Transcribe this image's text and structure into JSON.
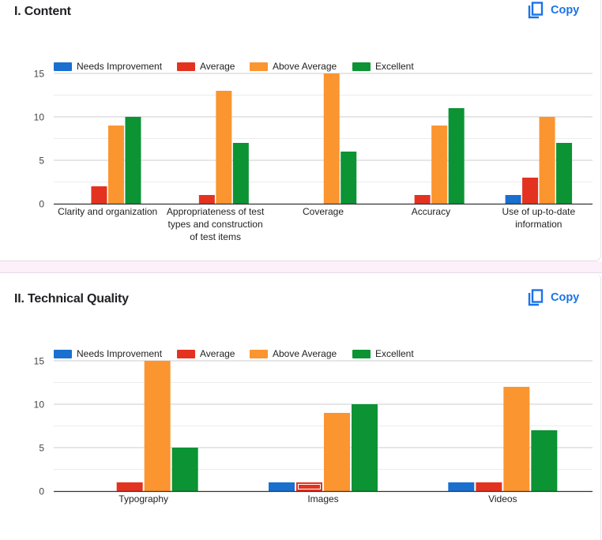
{
  "sections": [
    {
      "title": "I. Content",
      "copy_label": "Copy"
    },
    {
      "title": "II. Technical Quality",
      "copy_label": "Copy"
    }
  ],
  "icons": {
    "copy": "copy-icon"
  },
  "colors": {
    "accent": "#1a73e8",
    "needs_improvement": "#1a6fcf",
    "average": "#e33320",
    "above_average": "#fb9530",
    "excellent": "#0b9334"
  },
  "chart_data": [
    {
      "type": "bar",
      "title": "I. Content",
      "categories": [
        [
          "Clarity and organization"
        ],
        [
          "Appropriateness of test",
          "types and construction",
          "of test items"
        ],
        [
          "Coverage"
        ],
        [
          "Accuracy"
        ],
        [
          "Use of up-to-date",
          "information"
        ]
      ],
      "series": [
        {
          "name": "Needs Improvement",
          "color": "#1a6fcf",
          "values": [
            0,
            0,
            0,
            0,
            1
          ]
        },
        {
          "name": "Average",
          "color": "#e33320",
          "values": [
            2,
            1,
            0,
            1,
            3
          ]
        },
        {
          "name": "Above Average",
          "color": "#fb9530",
          "values": [
            9,
            13,
            15,
            9,
            10
          ]
        },
        {
          "name": "Excellent",
          "color": "#0b9334",
          "values": [
            10,
            7,
            6,
            11,
            7
          ]
        }
      ],
      "ylim": [
        0,
        15
      ],
      "yticks": [
        0,
        5,
        10,
        15
      ],
      "minor_grid": [
        2.5,
        7.5,
        12.5
      ],
      "grid": true,
      "legend": "top-left",
      "xlabel": "",
      "ylabel": ""
    },
    {
      "type": "bar",
      "title": "II. Technical Quality",
      "categories": [
        [
          "Typography"
        ],
        [
          "Images"
        ],
        [
          "Videos"
        ]
      ],
      "series": [
        {
          "name": "Needs Improvement",
          "color": "#1a6fcf",
          "values": [
            0,
            1,
            1
          ]
        },
        {
          "name": "Average",
          "color": "#e33320",
          "values": [
            1,
            1,
            1
          ]
        },
        {
          "name": "Above Average",
          "color": "#fb9530",
          "values": [
            15,
            9,
            12
          ]
        },
        {
          "name": "Excellent",
          "color": "#0b9334",
          "values": [
            5,
            10,
            7
          ]
        }
      ],
      "ylim": [
        0,
        15
      ],
      "yticks": [
        0,
        5,
        10,
        15
      ],
      "minor_grid": [
        2.5,
        7.5,
        12.5
      ],
      "grid": true,
      "legend": "top-left",
      "highlighted_bar": {
        "category": "Images",
        "series": "Average"
      },
      "xlabel": "",
      "ylabel": ""
    }
  ]
}
